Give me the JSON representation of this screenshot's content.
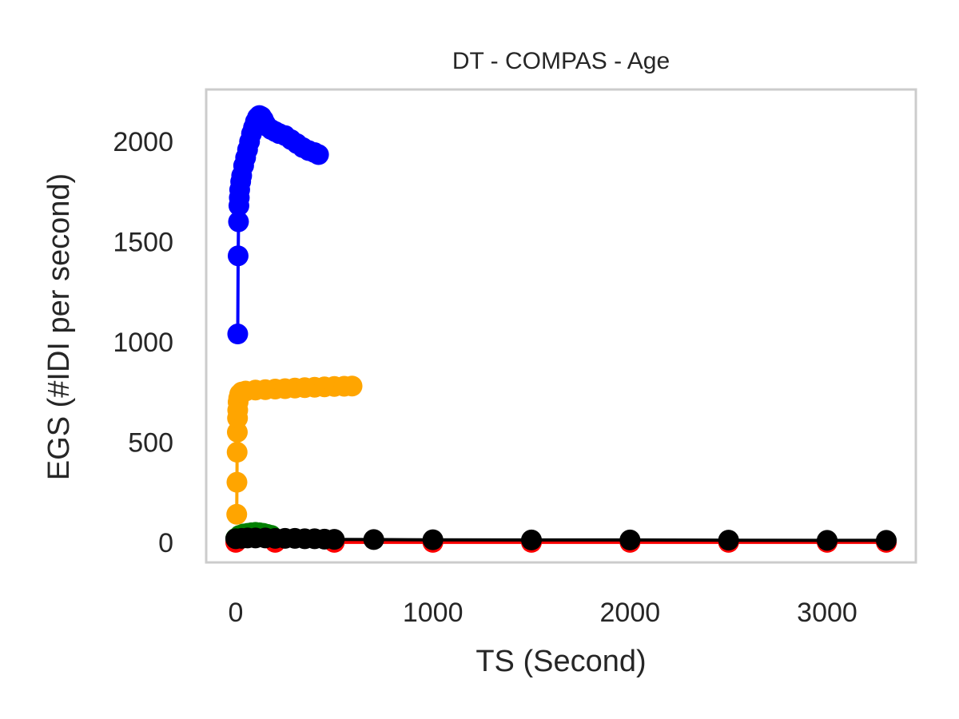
{
  "chart_data": {
    "type": "line",
    "title": "DT - COMPAS - Age",
    "xlabel": "TS (Second)",
    "ylabel": "EGS (#IDI  per second)",
    "xlim": [
      -150,
      3450
    ],
    "ylim": [
      -100,
      2260
    ],
    "xticks": [
      0,
      1000,
      2000,
      3000
    ],
    "yticks": [
      0,
      500,
      1000,
      1500,
      2000
    ],
    "grid": false,
    "legend": "none",
    "frame_color": "#cccccc",
    "series": [
      {
        "color": "#ff0000",
        "x": [
          0,
          200,
          500,
          1000,
          1500,
          2000,
          2500,
          3000,
          3300
        ],
        "y": [
          0,
          0,
          0,
          0,
          0,
          0,
          0,
          0,
          0
        ]
      },
      {
        "color": "#0000ff",
        "x": [
          10,
          12,
          14,
          16,
          18,
          20,
          25,
          30,
          40,
          50,
          60,
          70,
          80,
          90,
          100,
          110,
          120,
          130,
          140,
          150,
          160,
          180,
          200,
          220,
          250,
          280,
          310,
          340,
          370,
          400,
          420
        ],
        "y": [
          1040,
          1430,
          1600,
          1680,
          1720,
          1760,
          1800,
          1830,
          1880,
          1920,
          1960,
          2000,
          2040,
          2070,
          2100,
          2120,
          2130,
          2125,
          2110,
          2090,
          2075,
          2060,
          2050,
          2040,
          2030,
          2010,
          1990,
          1970,
          1955,
          1945,
          1935
        ]
      },
      {
        "color": "#ffa500",
        "x": [
          5,
          6,
          7,
          8,
          9,
          10,
          12,
          15,
          20,
          30,
          50,
          100,
          150,
          200,
          250,
          300,
          350,
          400,
          450,
          500,
          550,
          590
        ],
        "y": [
          140,
          300,
          450,
          550,
          620,
          660,
          700,
          720,
          740,
          750,
          755,
          760,
          762,
          765,
          767,
          770,
          772,
          774,
          776,
          778,
          779,
          780
        ]
      },
      {
        "color": "#008000",
        "x": [
          0,
          20,
          40,
          60,
          80,
          100,
          120,
          140,
          160,
          180
        ],
        "y": [
          20,
          35,
          42,
          45,
          48,
          50,
          48,
          45,
          40,
          35
        ]
      },
      {
        "color": "#000000",
        "x": [
          0,
          30,
          60,
          100,
          150,
          200,
          250,
          300,
          350,
          400,
          450,
          500,
          700,
          1000,
          1500,
          2000,
          2500,
          3000,
          3300
        ],
        "y": [
          18,
          20,
          22,
          22,
          22,
          20,
          20,
          20,
          18,
          18,
          16,
          15,
          14,
          13,
          12,
          12,
          11,
          10,
          10
        ]
      }
    ]
  }
}
